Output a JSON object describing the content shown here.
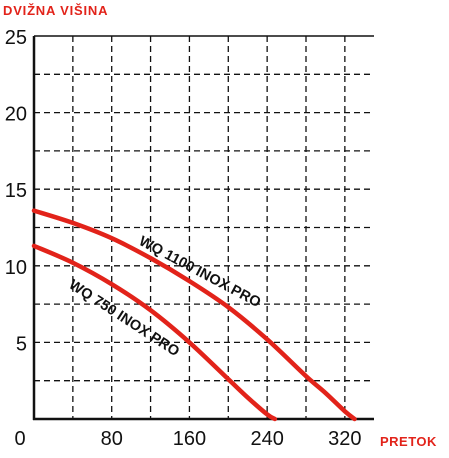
{
  "chart_data": {
    "type": "line",
    "title": "",
    "ylabel": "DVIŽNA VIŠINA",
    "xlabel": "PRETOK",
    "xlim": [
      0,
      350
    ],
    "ylim": [
      0,
      25
    ],
    "x_ticks": [
      "0",
      "80",
      "160",
      "240",
      "320"
    ],
    "y_ticks": [
      "5",
      "10",
      "15",
      "20",
      "25"
    ],
    "grid": true,
    "grid_style": "dashed",
    "x_grid_step": 40,
    "y_grid_step": 2.5,
    "colors": {
      "curve": "#e2231a",
      "text": "#111111",
      "label": "#e2231a",
      "grid": "#111111"
    },
    "series": [
      {
        "name": "WQ 1100 INOX PRO",
        "x": [
          0,
          40,
          80,
          120,
          160,
          200,
          240,
          280,
          300,
          320,
          330
        ],
        "y": [
          13.6,
          12.8,
          11.8,
          10.5,
          9.0,
          7.3,
          5.2,
          2.8,
          1.7,
          0.5,
          0.0
        ]
      },
      {
        "name": "WQ 750 INOX PRO",
        "x": [
          0,
          40,
          80,
          120,
          160,
          200,
          220,
          240,
          248
        ],
        "y": [
          11.3,
          10.2,
          8.8,
          7.1,
          5.0,
          2.6,
          1.4,
          0.3,
          0.0
        ]
      }
    ]
  }
}
